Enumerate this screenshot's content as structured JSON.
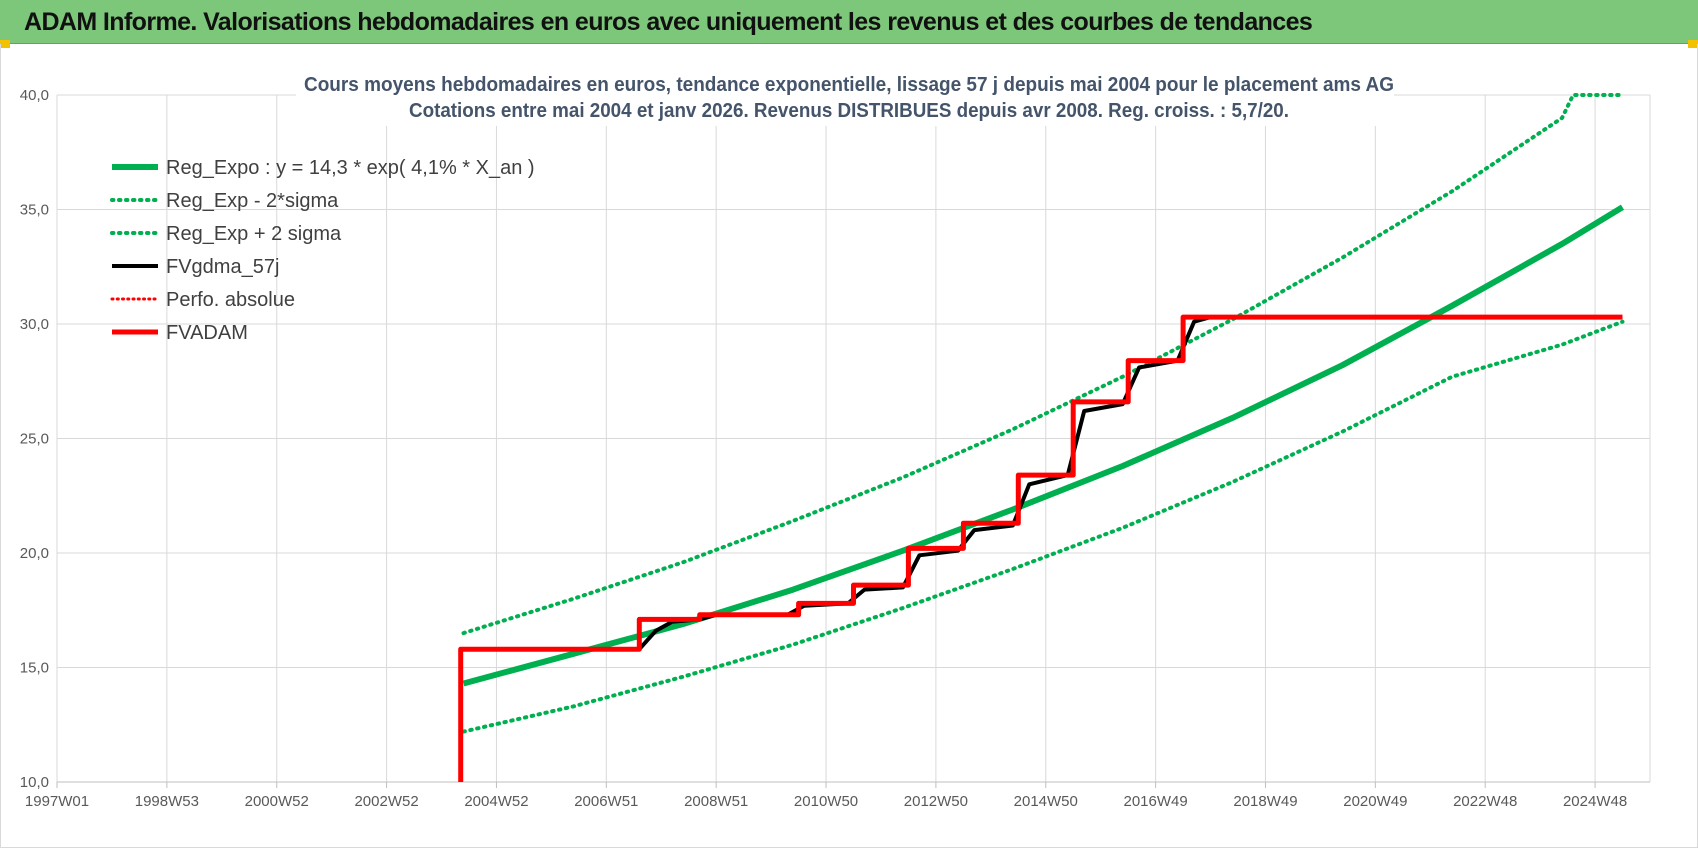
{
  "banner": {
    "title": "ADAM Informe. Valorisations hebdomadaires en euros avec uniquement les revenus et des courbes de tendances"
  },
  "chart_data": {
    "type": "line",
    "title_line1": "Cours moyens hebdomadaires en euros, tendance exponentielle, lissage 57 j depuis mai 2004 pour le placement ams AG",
    "title_line2": "Cotations entre mai 2004 et janv 2026. Revenus DISTRIBUES depuis avr 2008. Reg. croiss. : 5,7/20.",
    "xlim": [
      1997.0,
      2026.0
    ],
    "ylim": [
      10.0,
      40.0
    ],
    "x_ticks": [
      {
        "x": 1997.0,
        "label": "1997W01"
      },
      {
        "x": 1999.0,
        "label": "1998W53"
      },
      {
        "x": 2001.0,
        "label": "2000W52"
      },
      {
        "x": 2003.0,
        "label": "2002W52"
      },
      {
        "x": 2005.0,
        "label": "2004W52"
      },
      {
        "x": 2007.0,
        "label": "2006W51"
      },
      {
        "x": 2009.0,
        "label": "2008W51"
      },
      {
        "x": 2011.0,
        "label": "2010W50"
      },
      {
        "x": 2013.0,
        "label": "2012W50"
      },
      {
        "x": 2015.0,
        "label": "2014W50"
      },
      {
        "x": 2017.0,
        "label": "2016W49"
      },
      {
        "x": 2019.0,
        "label": "2018W49"
      },
      {
        "x": 2021.0,
        "label": "2020W49"
      },
      {
        "x": 2023.0,
        "label": "2022W48"
      },
      {
        "x": 2025.0,
        "label": "2024W48"
      }
    ],
    "y_ticks": [
      {
        "y": 10,
        "label": "10,0"
      },
      {
        "y": 15,
        "label": "15,0"
      },
      {
        "y": 20,
        "label": "20,0"
      },
      {
        "y": 25,
        "label": "25,0"
      },
      {
        "x": null,
        "y": 30,
        "label": "30,0"
      },
      {
        "y": 35,
        "label": "35,0"
      },
      {
        "y": 40,
        "label": "40,0"
      }
    ],
    "grid": true,
    "legend_position": "top-left",
    "series": [
      {
        "name": "Reg_Expo : y = 14,3 * exp( 4,1% *  X_an )",
        "color": "#00b050",
        "style": "solid",
        "width": 6,
        "points": [
          [
            2004.4,
            14.3
          ],
          [
            2006.4,
            15.6
          ],
          [
            2008.4,
            16.9
          ],
          [
            2010.4,
            18.4
          ],
          [
            2012.4,
            20.1
          ],
          [
            2014.4,
            21.9
          ],
          [
            2016.4,
            23.8
          ],
          [
            2018.4,
            25.9
          ],
          [
            2020.4,
            28.2
          ],
          [
            2022.4,
            30.8
          ],
          [
            2024.4,
            33.5
          ],
          [
            2025.5,
            35.1
          ]
        ]
      },
      {
        "name": "Reg_Exp - 2*sigma",
        "color": "#00b050",
        "style": "dotted",
        "width": 4,
        "points": [
          [
            2004.4,
            12.2
          ],
          [
            2006.4,
            13.3
          ],
          [
            2008.4,
            14.6
          ],
          [
            2010.4,
            16.0
          ],
          [
            2012.4,
            17.6
          ],
          [
            2014.4,
            19.3
          ],
          [
            2016.4,
            21.1
          ],
          [
            2018.4,
            23.1
          ],
          [
            2020.4,
            25.3
          ],
          [
            2022.4,
            27.7
          ],
          [
            2024.4,
            29.1
          ],
          [
            2025.5,
            30.1
          ]
        ]
      },
      {
        "name": "Reg_Exp + 2 sigma",
        "color": "#00b050",
        "style": "dotted",
        "width": 4,
        "points": [
          [
            2004.4,
            16.5
          ],
          [
            2006.4,
            18.0
          ],
          [
            2008.4,
            19.6
          ],
          [
            2010.4,
            21.4
          ],
          [
            2012.4,
            23.3
          ],
          [
            2014.4,
            25.4
          ],
          [
            2016.4,
            27.7
          ],
          [
            2018.4,
            30.2
          ],
          [
            2020.4,
            32.9
          ],
          [
            2022.4,
            35.8
          ],
          [
            2024.4,
            39.0
          ],
          [
            2024.6,
            40.0
          ],
          [
            2025.5,
            40.0
          ]
        ]
      },
      {
        "name": "FVgdma_57j",
        "color": "#000000",
        "style": "solid",
        "width": 4,
        "points": [
          [
            2004.4,
            15.8
          ],
          [
            2007.6,
            15.8
          ],
          [
            2007.9,
            16.6
          ],
          [
            2008.2,
            17.0
          ],
          [
            2008.7,
            17.1
          ],
          [
            2009.0,
            17.3
          ],
          [
            2010.3,
            17.3
          ],
          [
            2010.6,
            17.7
          ],
          [
            2011.4,
            17.8
          ],
          [
            2011.7,
            18.4
          ],
          [
            2012.4,
            18.5
          ],
          [
            2012.7,
            19.9
          ],
          [
            2013.4,
            20.1
          ],
          [
            2013.7,
            21.0
          ],
          [
            2014.4,
            21.2
          ],
          [
            2014.7,
            23.0
          ],
          [
            2015.4,
            23.4
          ],
          [
            2015.7,
            26.2
          ],
          [
            2016.4,
            26.5
          ],
          [
            2016.7,
            28.1
          ],
          [
            2017.4,
            28.4
          ],
          [
            2017.7,
            30.1
          ],
          [
            2018.0,
            30.3
          ],
          [
            2025.5,
            30.3
          ]
        ]
      },
      {
        "name": "Perfo. absolue",
        "color": "#ff0000",
        "style": "dotted",
        "width": 3,
        "points": []
      },
      {
        "name": "FVADAM",
        "color": "#ff0000",
        "style": "solid",
        "width": 5,
        "points": [
          [
            2004.35,
            10.0
          ],
          [
            2004.35,
            15.8
          ],
          [
            2007.6,
            15.8
          ],
          [
            2007.6,
            17.1
          ],
          [
            2008.7,
            17.1
          ],
          [
            2008.7,
            17.3
          ],
          [
            2010.5,
            17.3
          ],
          [
            2010.5,
            17.8
          ],
          [
            2011.5,
            17.8
          ],
          [
            2011.5,
            18.6
          ],
          [
            2012.5,
            18.6
          ],
          [
            2012.5,
            20.2
          ],
          [
            2013.5,
            20.2
          ],
          [
            2013.5,
            21.3
          ],
          [
            2014.5,
            21.3
          ],
          [
            2014.5,
            23.4
          ],
          [
            2015.5,
            23.4
          ],
          [
            2015.5,
            26.6
          ],
          [
            2016.5,
            26.6
          ],
          [
            2016.5,
            28.4
          ],
          [
            2017.5,
            28.4
          ],
          [
            2017.5,
            30.3
          ],
          [
            2025.5,
            30.3
          ]
        ]
      }
    ]
  }
}
